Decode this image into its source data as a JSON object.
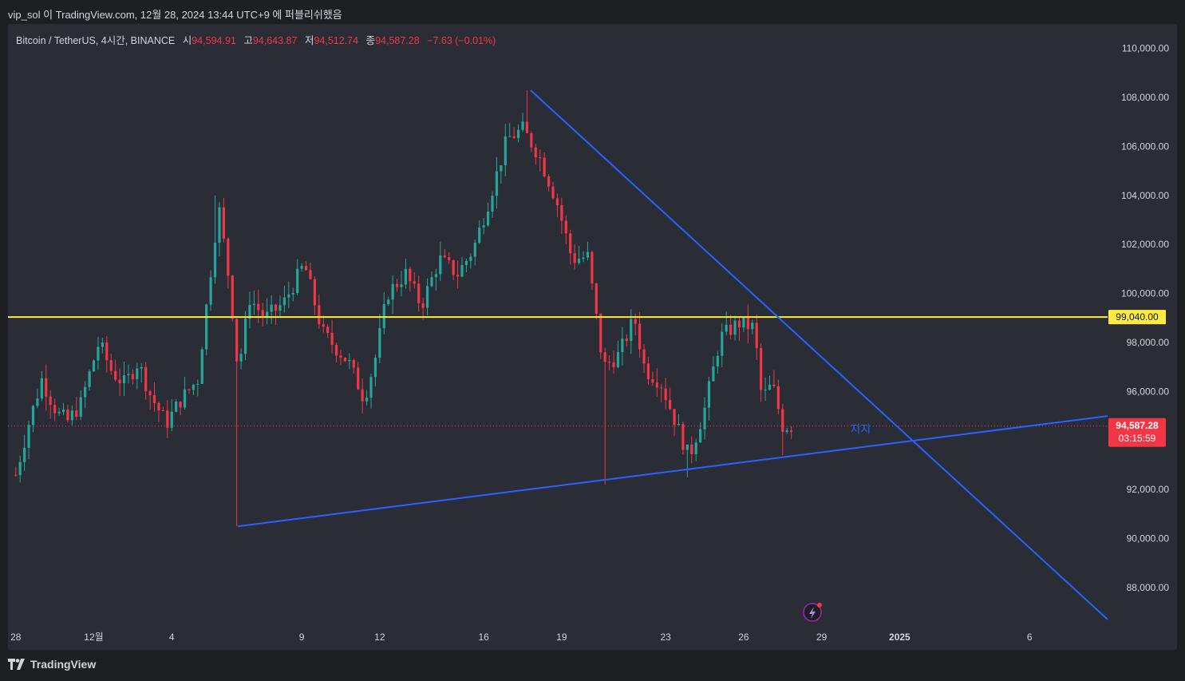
{
  "header": {
    "publish_line": "vip_sol 이 TradingView.com, 12월 28, 2024 13:44 UTC+9 에 퍼블리쉬했음"
  },
  "legend": {
    "symbol": "Bitcoin / TetherUS, 4시간, BINANCE",
    "open_label": "시",
    "open": "94,594.91",
    "high_label": "고",
    "high": "94,643.87",
    "low_label": "저",
    "low": "94,512.74",
    "close_label": "종",
    "close": "94,587.28",
    "change": "−7.63 (−0.01%)"
  },
  "footer": {
    "brand": "TradingView"
  },
  "colors": {
    "up": "#26a69a",
    "down": "#f23645",
    "background": "#2a2c36",
    "trendline": "#2962ff",
    "horizontal_line": "#ffeb3b",
    "price_label_bg": "#f23645"
  },
  "chart_data": {
    "type": "candlestick",
    "symbol": "Bitcoin / TetherUS",
    "interval": "4시간",
    "exchange": "BINANCE",
    "ylim": [
      86500,
      111000
    ],
    "y_ticks": [
      "110,000.00",
      "108,000.00",
      "106,000.00",
      "104,000.00",
      "102,000.00",
      "100,000.00",
      "98,000.00",
      "96,000.00",
      "92,000.00",
      "90,000.00",
      "88,000.00"
    ],
    "y_tick_values": [
      110000,
      108000,
      106000,
      104000,
      102000,
      100000,
      98000,
      96000,
      92000,
      90000,
      88000
    ],
    "x_ticks": [
      "28",
      "12월",
      "4",
      "9",
      "12",
      "16",
      "19",
      "23",
      "26",
      "29",
      "2025",
      "6"
    ],
    "x_tick_days": [
      0,
      3,
      6,
      11,
      14,
      18,
      21,
      25,
      28,
      31,
      34,
      39
    ],
    "x_range_days": [
      -0.3,
      42
    ],
    "last_price": "94,587.28",
    "last_price_value": 94587.28,
    "countdown": "03:15:59",
    "horizontal_level": {
      "label": "99,040.00",
      "value": 99040
    },
    "annotation": {
      "text": "지지",
      "day": 32.1,
      "price": 94300
    },
    "trendlines": [
      {
        "name": "support",
        "from": {
          "day": 8.55,
          "price": 90500
        },
        "to": {
          "day": 42,
          "price": 95000
        }
      },
      {
        "name": "resistance",
        "from": {
          "day": 19.8,
          "price": 108300
        },
        "to": {
          "day": 42,
          "price": 86700
        }
      }
    ],
    "ohlc_anchors": [
      [
        0.0,
        92600
      ],
      [
        0.5,
        94700
      ],
      [
        1.0,
        96500
      ],
      [
        1.6,
        95100
      ],
      [
        2.0,
        94800
      ],
      [
        2.5,
        95500
      ],
      [
        2.8,
        96600
      ],
      [
        3.2,
        98000
      ],
      [
        3.7,
        96800
      ],
      [
        4.2,
        96300
      ],
      [
        4.7,
        97200
      ],
      [
        5.2,
        95800
      ],
      [
        5.8,
        94700
      ],
      [
        6.3,
        95600
      ],
      [
        7.0,
        96500
      ],
      [
        7.8,
        103600
      ],
      [
        8.25,
        100200
      ],
      [
        8.55,
        96800
      ],
      [
        9.0,
        99800
      ],
      [
        9.6,
        99000
      ],
      [
        10.3,
        99600
      ],
      [
        11.1,
        101200
      ],
      [
        11.8,
        98400
      ],
      [
        12.8,
        97200
      ],
      [
        13.4,
        95700
      ],
      [
        13.8,
        97200
      ],
      [
        14.3,
        100000
      ],
      [
        15.0,
        100800
      ],
      [
        15.6,
        99500
      ],
      [
        16.3,
        101400
      ],
      [
        17.0,
        100800
      ],
      [
        17.6,
        101800
      ],
      [
        18.2,
        103800
      ],
      [
        18.9,
        106300
      ],
      [
        19.5,
        106700
      ],
      [
        20.1,
        105700
      ],
      [
        20.8,
        103800
      ],
      [
        21.4,
        101400
      ],
      [
        22.0,
        101500
      ],
      [
        22.6,
        97000
      ],
      [
        23.2,
        97500
      ],
      [
        23.8,
        99000
      ],
      [
        24.2,
        96900
      ],
      [
        24.8,
        96400
      ],
      [
        25.4,
        94700
      ],
      [
        25.9,
        93300
      ],
      [
        26.5,
        95300
      ],
      [
        27.1,
        98200
      ],
      [
        27.8,
        98800
      ],
      [
        28.4,
        98600
      ],
      [
        28.7,
        95700
      ],
      [
        29.1,
        96300
      ],
      [
        29.5,
        94600
      ],
      [
        29.9,
        94587
      ]
    ]
  }
}
